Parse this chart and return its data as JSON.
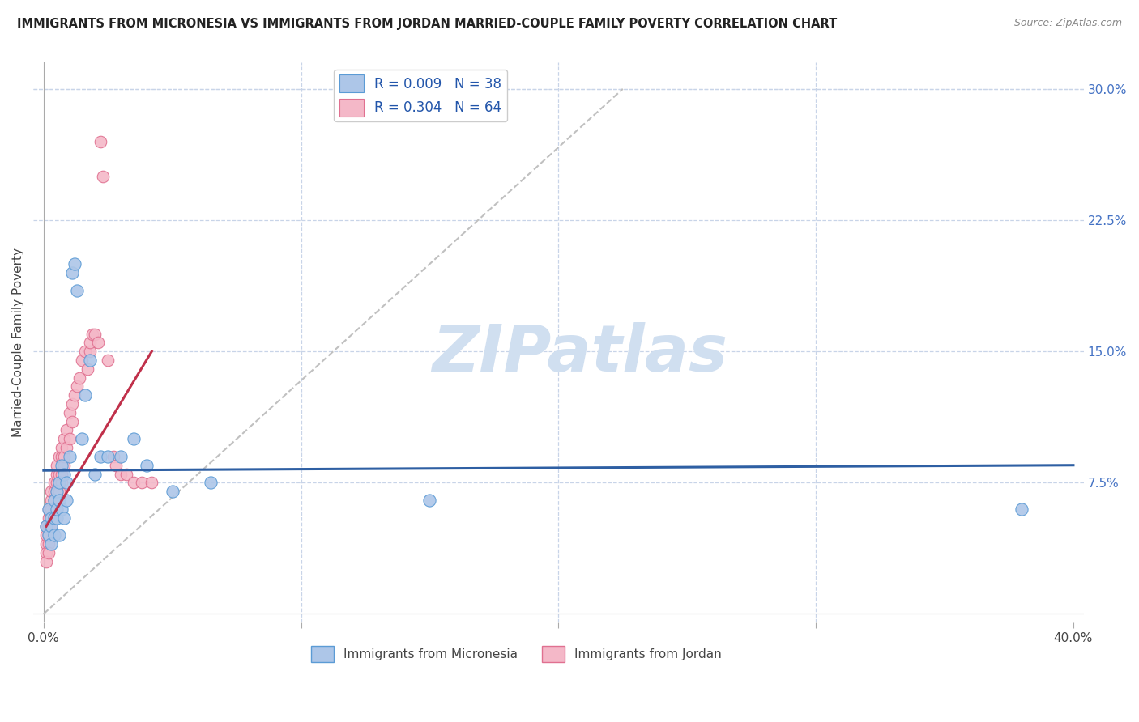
{
  "title": "IMMIGRANTS FROM MICRONESIA VS IMMIGRANTS FROM JORDAN MARRIED-COUPLE FAMILY POVERTY CORRELATION CHART",
  "source": "Source: ZipAtlas.com",
  "ylabel": "Married-Couple Family Poverty",
  "legend_micronesia": "Immigrants from Micronesia",
  "legend_jordan": "Immigrants from Jordan",
  "R_micronesia": 0.009,
  "N_micronesia": 38,
  "R_jordan": 0.304,
  "N_jordan": 64,
  "color_micronesia_fill": "#adc6e8",
  "color_micronesia_edge": "#5b9bd5",
  "color_jordan_fill": "#f4b8c8",
  "color_jordan_edge": "#e07090",
  "color_micronesia_line": "#2e5fa3",
  "color_jordan_line": "#c0304a",
  "color_diag": "#c0c0c0",
  "background": "#ffffff",
  "grid_color": "#c8d4e8",
  "watermark_color": "#d0dff0",
  "xlim": [
    0.0,
    0.4
  ],
  "ylim": [
    0.0,
    0.3
  ],
  "micronesia_x": [
    0.001,
    0.002,
    0.002,
    0.003,
    0.003,
    0.003,
    0.004,
    0.004,
    0.004,
    0.005,
    0.005,
    0.005,
    0.006,
    0.006,
    0.006,
    0.007,
    0.007,
    0.008,
    0.008,
    0.009,
    0.009,
    0.01,
    0.011,
    0.012,
    0.013,
    0.015,
    0.016,
    0.018,
    0.02,
    0.022,
    0.025,
    0.03,
    0.035,
    0.04,
    0.05,
    0.065,
    0.15,
    0.38
  ],
  "micronesia_y": [
    0.05,
    0.06,
    0.045,
    0.055,
    0.05,
    0.04,
    0.055,
    0.045,
    0.065,
    0.055,
    0.06,
    0.07,
    0.065,
    0.075,
    0.045,
    0.06,
    0.085,
    0.08,
    0.055,
    0.075,
    0.065,
    0.09,
    0.195,
    0.2,
    0.185,
    0.1,
    0.125,
    0.145,
    0.08,
    0.09,
    0.09,
    0.09,
    0.1,
    0.085,
    0.07,
    0.075,
    0.065,
    0.06
  ],
  "jordan_x": [
    0.001,
    0.001,
    0.001,
    0.001,
    0.001,
    0.002,
    0.002,
    0.002,
    0.002,
    0.002,
    0.002,
    0.003,
    0.003,
    0.003,
    0.003,
    0.003,
    0.004,
    0.004,
    0.004,
    0.004,
    0.004,
    0.005,
    0.005,
    0.005,
    0.005,
    0.005,
    0.006,
    0.006,
    0.006,
    0.006,
    0.007,
    0.007,
    0.007,
    0.007,
    0.008,
    0.008,
    0.008,
    0.009,
    0.009,
    0.01,
    0.01,
    0.011,
    0.011,
    0.012,
    0.013,
    0.014,
    0.015,
    0.016,
    0.017,
    0.018,
    0.018,
    0.019,
    0.02,
    0.021,
    0.022,
    0.023,
    0.025,
    0.027,
    0.028,
    0.03,
    0.032,
    0.035,
    0.038,
    0.042
  ],
  "jordan_y": [
    0.04,
    0.045,
    0.035,
    0.03,
    0.05,
    0.04,
    0.045,
    0.035,
    0.05,
    0.055,
    0.06,
    0.05,
    0.055,
    0.06,
    0.065,
    0.07,
    0.055,
    0.06,
    0.065,
    0.07,
    0.075,
    0.06,
    0.07,
    0.075,
    0.08,
    0.085,
    0.07,
    0.075,
    0.08,
    0.09,
    0.075,
    0.08,
    0.09,
    0.095,
    0.085,
    0.09,
    0.1,
    0.095,
    0.105,
    0.1,
    0.115,
    0.11,
    0.12,
    0.125,
    0.13,
    0.135,
    0.145,
    0.15,
    0.14,
    0.15,
    0.155,
    0.16,
    0.16,
    0.155,
    0.27,
    0.25,
    0.145,
    0.09,
    0.085,
    0.08,
    0.08,
    0.075,
    0.075,
    0.075
  ]
}
